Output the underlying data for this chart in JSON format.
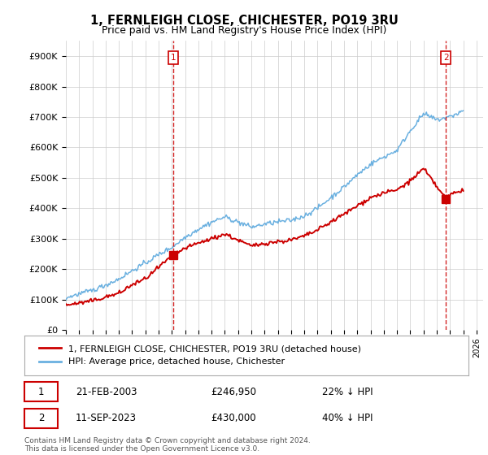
{
  "title": "1, FERNLEIGH CLOSE, CHICHESTER, PO19 3RU",
  "subtitle": "Price paid vs. HM Land Registry's House Price Index (HPI)",
  "ylabel_ticks": [
    "£0",
    "£100K",
    "£200K",
    "£300K",
    "£400K",
    "£500K",
    "£600K",
    "£700K",
    "£800K",
    "£900K"
  ],
  "ytick_values": [
    0,
    100000,
    200000,
    300000,
    400000,
    500000,
    600000,
    700000,
    800000,
    900000
  ],
  "ylim": [
    0,
    950000
  ],
  "hpi_color": "#6ab0e0",
  "price_color": "#cc0000",
  "sale1_date": "21-FEB-2003",
  "sale1_price": 246950,
  "sale1_label": "£246,950",
  "sale1_pct": "22% ↓ HPI",
  "sale1_year": 2003.13,
  "sale2_date": "11-SEP-2023",
  "sale2_price": 430000,
  "sale2_label": "£430,000",
  "sale2_pct": "40% ↓ HPI",
  "sale2_year": 2023.7,
  "legend_label_red": "1, FERNLEIGH CLOSE, CHICHESTER, PO19 3RU (detached house)",
  "legend_label_blue": "HPI: Average price, detached house, Chichester",
  "footer": "Contains HM Land Registry data © Crown copyright and database right 2024.\nThis data is licensed under the Open Government Licence v3.0.",
  "background_color": "#ffffff",
  "grid_color": "#cccccc",
  "xlim_start": 1995.0,
  "xlim_end": 2026.5,
  "hpi_years": [
    1995,
    1996,
    1997,
    1998,
    1999,
    2000,
    2001,
    2002,
    2003,
    2004,
    2005,
    2006,
    2007,
    2008,
    2009,
    2010,
    2011,
    2012,
    2013,
    2014,
    2015,
    2016,
    2017,
    2018,
    2019,
    2020,
    2021,
    2022,
    2023,
    2024,
    2025
  ],
  "hpi_prices": [
    105000,
    118000,
    130000,
    148000,
    168000,
    195000,
    220000,
    248000,
    272000,
    305000,
    332000,
    355000,
    372000,
    355000,
    338000,
    348000,
    355000,
    360000,
    375000,
    400000,
    435000,
    470000,
    510000,
    545000,
    568000,
    590000,
    655000,
    710000,
    690000,
    700000,
    720000
  ],
  "price_years": [
    1995,
    1996,
    1997,
    1998,
    1999,
    2000,
    2001,
    2002,
    2003.13,
    2004,
    2005,
    2006,
    2007,
    2008,
    2009,
    2010,
    2011,
    2012,
    2013,
    2014,
    2015,
    2016,
    2017,
    2018,
    2019,
    2020,
    2021,
    2022,
    2023.7,
    2024,
    2025
  ],
  "price_prices": [
    82000,
    88000,
    95000,
    108000,
    120000,
    148000,
    168000,
    205000,
    246950,
    268000,
    285000,
    300000,
    315000,
    295000,
    275000,
    285000,
    290000,
    295000,
    308000,
    328000,
    355000,
    380000,
    408000,
    435000,
    450000,
    460000,
    490000,
    530000,
    430000,
    445000,
    460000
  ]
}
